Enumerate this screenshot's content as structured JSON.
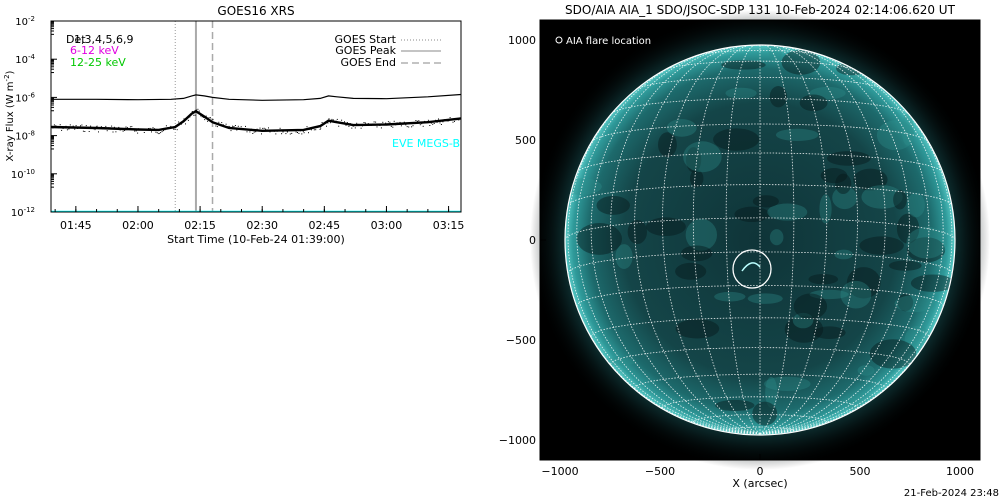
{
  "chart_data": [
    {
      "type": "line",
      "title": "GOES16 XRS",
      "xlabel": "Start Time (10-Feb-24 01:39:00)",
      "ylabel_text": "X-ray Flux (W m",
      "ylabel_sup": "-2",
      "ylabel_close": ")",
      "yscale": "log",
      "ylim_exp": [
        -12,
        -2
      ],
      "x_ticks": [
        "01:45",
        "02:00",
        "02:15",
        "02:30",
        "02:45",
        "03:00",
        "03:15"
      ],
      "y_tick_exponents": [
        -2,
        -4,
        -6,
        -8,
        -10,
        -12
      ],
      "y_tick_base": "10",
      "legend_left": [
        {
          "label": "Det",
          "color": "#000000"
        },
        {
          "label": "6-12 keV",
          "color": "#e100e1"
        },
        {
          "label": "12-25 keV",
          "color": "#00c800"
        }
      ],
      "legend_left_detnums": "1,3,4,5,6,9",
      "legend_right": [
        {
          "label": "GOES Start",
          "style": "dotted"
        },
        {
          "label": "GOES Peak",
          "style": "solid"
        },
        {
          "label": "GOES End",
          "style": "dashed"
        }
      ],
      "annotation": {
        "text": "EVE MEGS-B",
        "color": "#00ffff"
      },
      "markers": {
        "start": "02:09",
        "peak": "02:14",
        "end": "02:18"
      },
      "series": [
        {
          "name": "long",
          "color": "#000000",
          "x": [
            "01:39",
            "01:50",
            "02:00",
            "02:08",
            "02:11",
            "02:13",
            "02:14",
            "02:16",
            "02:18",
            "02:22",
            "02:30",
            "02:40",
            "02:44",
            "02:46",
            "02:48",
            "02:52",
            "03:00",
            "03:10",
            "03:18"
          ],
          "exponent": [
            -6.1,
            -6.1,
            -6.12,
            -6.1,
            -6.05,
            -5.92,
            -5.87,
            -5.92,
            -6.0,
            -6.1,
            -6.15,
            -6.12,
            -6.05,
            -5.92,
            -5.97,
            -6.05,
            -6.07,
            -5.97,
            -5.85
          ]
        },
        {
          "name": "short",
          "color": "#000000",
          "x": [
            "01:39",
            "01:50",
            "02:00",
            "02:05",
            "02:09",
            "02:11",
            "02:13",
            "02:14",
            "02:16",
            "02:18",
            "02:22",
            "02:30",
            "02:40",
            "02:44",
            "02:46",
            "02:48",
            "02:52",
            "03:00",
            "03:10",
            "03:18"
          ],
          "exponent": [
            -7.55,
            -7.6,
            -7.68,
            -7.7,
            -7.55,
            -7.25,
            -6.85,
            -6.72,
            -7.0,
            -7.3,
            -7.6,
            -7.75,
            -7.7,
            -7.5,
            -7.22,
            -7.3,
            -7.45,
            -7.42,
            -7.3,
            -7.1
          ]
        },
        {
          "name": "EVE MEGS-B",
          "color": "#00ffff",
          "x": [
            "01:39",
            "03:18"
          ],
          "exponent": [
            -12,
            -12
          ]
        }
      ]
    },
    {
      "type": "image",
      "title": "SDO/AIA AIA_1 SDO/JSOC-SDP 131 10-Feb-2024 02:14:06.620 UT",
      "xlabel": "X (arcsec)",
      "ylabel": "",
      "xlim": [
        -1100,
        1100
      ],
      "ylim": [
        -1100,
        1100
      ],
      "x_ticks": [
        -1000,
        -500,
        0,
        500,
        1000
      ],
      "y_ticks": [
        1000,
        500,
        0,
        -500,
        -1000
      ],
      "legend": "AIA flare location",
      "solar_radius_arcsec": 975,
      "grid_spacing_deg": 10,
      "flare_location_arcsec": [
        -40,
        -145
      ],
      "footer": "21-Feb-2024 23:48"
    }
  ]
}
